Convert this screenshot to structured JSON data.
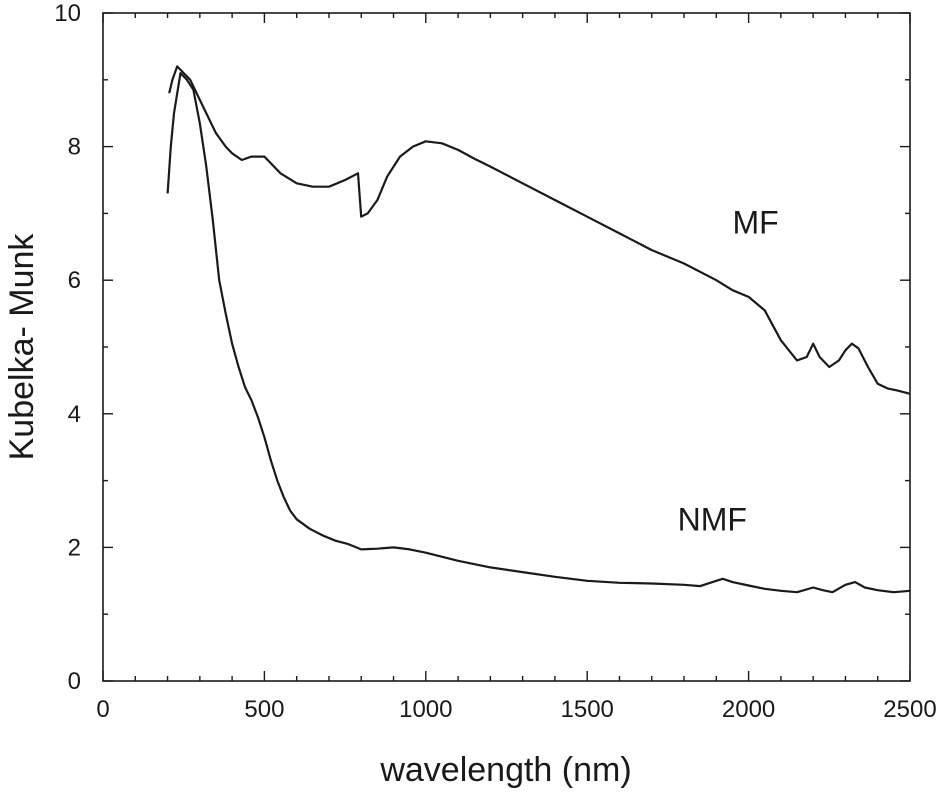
{
  "chart_data": {
    "type": "line",
    "title": "",
    "xlabel": "wavelength (nm)",
    "ylabel": "Kubelka- Munk",
    "xlim": [
      0,
      2500
    ],
    "ylim": [
      0,
      10
    ],
    "x_major_ticks": [
      0,
      500,
      1000,
      1500,
      2000,
      2500
    ],
    "x_minor_step": 100,
    "y_major_ticks": [
      0,
      2,
      4,
      6,
      8,
      10
    ],
    "y_minor_step": 1,
    "x_tick_labels": [
      "0",
      "500",
      "1000",
      "1500",
      "2000",
      "2500"
    ],
    "y_tick_labels": [
      "0",
      "2",
      "4",
      "6",
      "8",
      "10"
    ],
    "grid": false,
    "legend": "none",
    "line_color": "#1a1a1a",
    "series": [
      {
        "name": "MF",
        "label_position": [
          1950,
          6.7
        ],
        "x": [
          205,
          215,
          230,
          250,
          270,
          300,
          330,
          350,
          380,
          400,
          430,
          460,
          500,
          550,
          600,
          650,
          700,
          750,
          790,
          800,
          820,
          850,
          880,
          920,
          960,
          1000,
          1050,
          1100,
          1150,
          1200,
          1300,
          1400,
          1500,
          1600,
          1700,
          1800,
          1900,
          1950,
          2000,
          2050,
          2100,
          2150,
          2180,
          2200,
          2220,
          2250,
          2280,
          2300,
          2320,
          2340,
          2370,
          2400,
          2430,
          2460,
          2500
        ],
        "y": [
          8.8,
          9.0,
          9.2,
          9.1,
          9.0,
          8.7,
          8.4,
          8.2,
          8.0,
          7.9,
          7.8,
          7.85,
          7.85,
          7.6,
          7.45,
          7.4,
          7.4,
          7.5,
          7.6,
          6.95,
          7.0,
          7.2,
          7.55,
          7.85,
          8.0,
          8.08,
          8.05,
          7.95,
          7.82,
          7.7,
          7.45,
          7.2,
          6.95,
          6.7,
          6.45,
          6.25,
          6.0,
          5.85,
          5.75,
          5.55,
          5.1,
          4.8,
          4.85,
          5.05,
          4.85,
          4.7,
          4.8,
          4.95,
          5.05,
          4.98,
          4.7,
          4.45,
          4.38,
          4.35,
          4.3
        ]
      },
      {
        "name": "NMF",
        "label_position": [
          1780,
          2.25
        ],
        "x": [
          200,
          210,
          220,
          240,
          260,
          280,
          300,
          320,
          340,
          360,
          380,
          400,
          420,
          440,
          460,
          480,
          500,
          520,
          540,
          560,
          580,
          600,
          640,
          680,
          720,
          760,
          800,
          850,
          900,
          950,
          1000,
          1100,
          1200,
          1300,
          1400,
          1500,
          1600,
          1700,
          1800,
          1850,
          1900,
          1920,
          1950,
          2000,
          2050,
          2100,
          2150,
          2200,
          2230,
          2260,
          2300,
          2330,
          2360,
          2400,
          2450,
          2500
        ],
        "y": [
          7.3,
          8.0,
          8.5,
          9.1,
          9.0,
          8.85,
          8.35,
          7.7,
          6.9,
          6.0,
          5.5,
          5.05,
          4.7,
          4.4,
          4.2,
          3.95,
          3.65,
          3.3,
          3.0,
          2.75,
          2.55,
          2.42,
          2.28,
          2.18,
          2.1,
          2.05,
          1.97,
          1.98,
          2.0,
          1.97,
          1.92,
          1.8,
          1.7,
          1.63,
          1.56,
          1.5,
          1.47,
          1.46,
          1.44,
          1.42,
          1.5,
          1.53,
          1.48,
          1.43,
          1.38,
          1.35,
          1.33,
          1.4,
          1.36,
          1.33,
          1.44,
          1.48,
          1.4,
          1.36,
          1.33,
          1.35
        ]
      }
    ]
  }
}
